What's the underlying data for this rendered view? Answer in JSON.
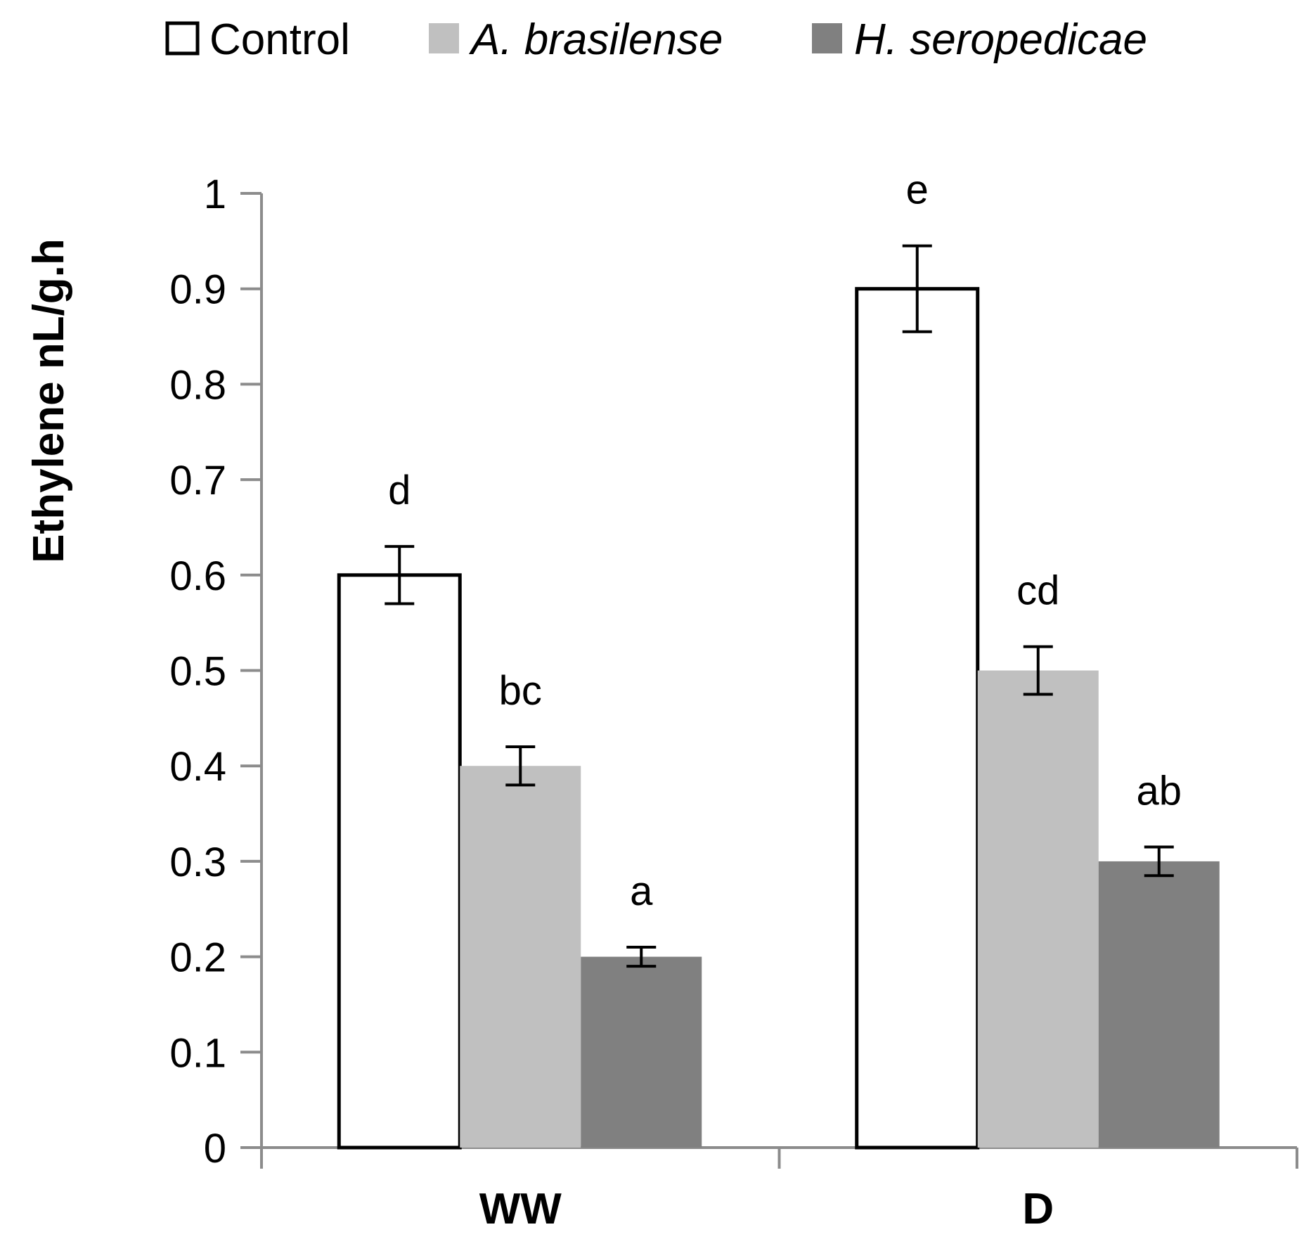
{
  "chart_data": {
    "type": "bar",
    "title": "",
    "xlabel": "",
    "ylabel": "Ethylene  nL/g.h",
    "ylim": [
      0,
      1
    ],
    "yticks": [
      0,
      0.1,
      0.2,
      0.3,
      0.4,
      0.5,
      0.6,
      0.7,
      0.8,
      0.9,
      1
    ],
    "ytick_labels": [
      "0",
      "0.1",
      "0.2",
      "0.3",
      "0.4",
      "0.5",
      "0.6",
      "0.7",
      "0.8",
      "0.9",
      "1"
    ],
    "categories": [
      "WW",
      "D"
    ],
    "legend_position": "top",
    "grid": false,
    "series": [
      {
        "name": "Control",
        "italic": false,
        "fill": "#ffffff",
        "stroke": "#000000",
        "values": [
          0.6,
          0.9
        ],
        "errors": [
          0.03,
          0.045
        ],
        "letters": [
          "d",
          "e"
        ]
      },
      {
        "name": "A. brasilense",
        "italic": true,
        "fill": "#c0c0c0",
        "stroke": "none",
        "values": [
          0.4,
          0.5
        ],
        "errors": [
          0.02,
          0.025
        ],
        "letters": [
          "bc",
          "cd"
        ]
      },
      {
        "name": "H. seropedicae",
        "italic": true,
        "fill": "#808080",
        "stroke": "none",
        "values": [
          0.2,
          0.3
        ],
        "errors": [
          0.01,
          0.015
        ],
        "letters": [
          "a",
          "ab"
        ]
      }
    ]
  }
}
